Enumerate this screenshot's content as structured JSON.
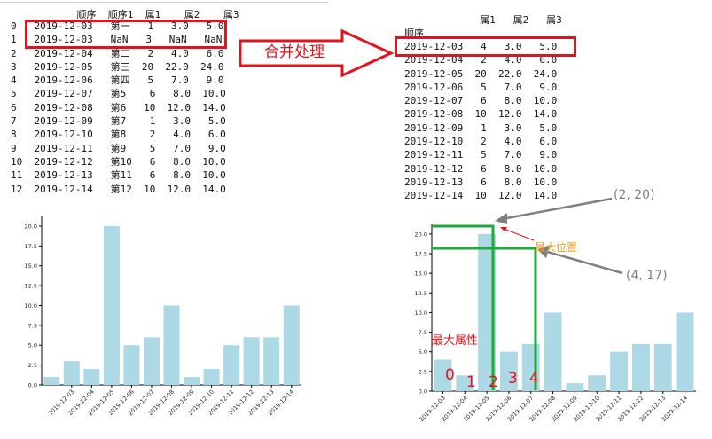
{
  "left_table": {
    "header": "    顺序  顺序1  属1    属2    属3",
    "rows": [
      "0   2019-12-03   第一   1   3.0   5.0",
      "1   2019-12-03   NaN   3   NaN   NaN",
      "2   2019-12-04   第二   2   4.0   6.0",
      "3   2019-12-05   第三  20  22.0  24.0",
      "4   2019-12-06   第四   5   7.0   9.0",
      "5   2019-12-07   第5    6   8.0  10.0",
      "6   2019-12-08   第6   10  12.0  14.0",
      "7   2019-12-09   第7    1   3.0   5.0",
      "8   2019-12-10   第8    2   4.0   6.0",
      "9   2019-12-11   第9    5   7.0   9.0",
      "10  2019-12-12   第10   6   8.0  10.0",
      "11  2019-12-13   第11   6   8.0  10.0",
      "12  2019-12-14   第12  10  12.0  14.0"
    ]
  },
  "right_table": {
    "header": "             属1   属2   属3",
    "index_label": "顺序",
    "rows": [
      "2019-12-03   4   3.0   5.0",
      "2019-12-04   2   4.0   6.0",
      "2019-12-05  20  22.0  24.0",
      "2019-12-06   5   7.0   9.0",
      "2019-12-07   6   8.0  10.0",
      "2019-12-08  10  12.0  14.0",
      "2019-12-09   1   3.0   5.0",
      "2019-12-10   2   4.0   6.0",
      "2019-12-11   5   7.0   9.0",
      "2019-12-12   6   8.0  10.0",
      "2019-12-13   6   8.0  10.0",
      "2019-12-14  10  12.0  14.0"
    ]
  },
  "arrow_label": "合并处理",
  "annotations": {
    "coord_a": "(2, 20)",
    "coord_b": "(4, 17)",
    "max_pos": "最大位置",
    "max_attr": "最大属性",
    "indices": [
      "0",
      "1",
      "2",
      "3",
      "4"
    ]
  },
  "colors": {
    "bar": "#add8e6",
    "red": "#e0141e",
    "green": "#1faa3c",
    "gray": "#808080",
    "orange": "#f0a020"
  },
  "chart_data": [
    {
      "type": "bar",
      "categories": [
        "2019-12-03",
        "2019-12-03",
        "2019-12-04",
        "2019-12-05",
        "2019-12-06",
        "2019-12-07",
        "2019-12-08",
        "2019-12-09",
        "2019-12-10",
        "2019-12-11",
        "2019-12-12",
        "2019-12-13",
        "2019-12-14"
      ],
      "values": [
        1,
        3,
        2,
        20,
        5,
        6,
        10,
        1,
        2,
        5,
        6,
        6,
        10
      ],
      "tick_labels": [
        "2019-12-03",
        "2019-12-04",
        "2019-12-05",
        "2019-12-06",
        "2019-12-07",
        "2019-12-08",
        "2019-12-09",
        "2019-12-10",
        "2019-12-11",
        "2019-12-12",
        "2019-12-13",
        "2019-12-14"
      ],
      "yticks": [
        "0.0",
        "2.5",
        "5.0",
        "7.5",
        "10.0",
        "12.5",
        "15.0",
        "17.5",
        "20.0"
      ],
      "ylim": [
        0,
        21
      ]
    },
    {
      "type": "bar",
      "categories": [
        "2019-12-03",
        "2019-12-04",
        "2019-12-05",
        "2019-12-06",
        "2019-12-07",
        "2019-12-08",
        "2019-12-09",
        "2019-12-10",
        "2019-12-11",
        "2019-12-12",
        "2019-12-13",
        "2019-12-14"
      ],
      "values": [
        4,
        2,
        20,
        5,
        6,
        10,
        1,
        2,
        5,
        6,
        6,
        10
      ],
      "tick_labels": [
        "2019-12-03",
        "2019-12-04",
        "2019-12-05",
        "2019-12-06",
        "2019-12-07",
        "2019-12-08",
        "2019-12-09",
        "2019-12-10",
        "2019-12-11",
        "2019-12-12",
        "2019-12-13",
        "2019-12-14"
      ],
      "yticks": [
        "0.0",
        "2.5",
        "5.0",
        "7.5",
        "10.0",
        "12.5",
        "15.0",
        "17.5",
        "20.0"
      ],
      "ylim": [
        0,
        21
      ]
    }
  ]
}
